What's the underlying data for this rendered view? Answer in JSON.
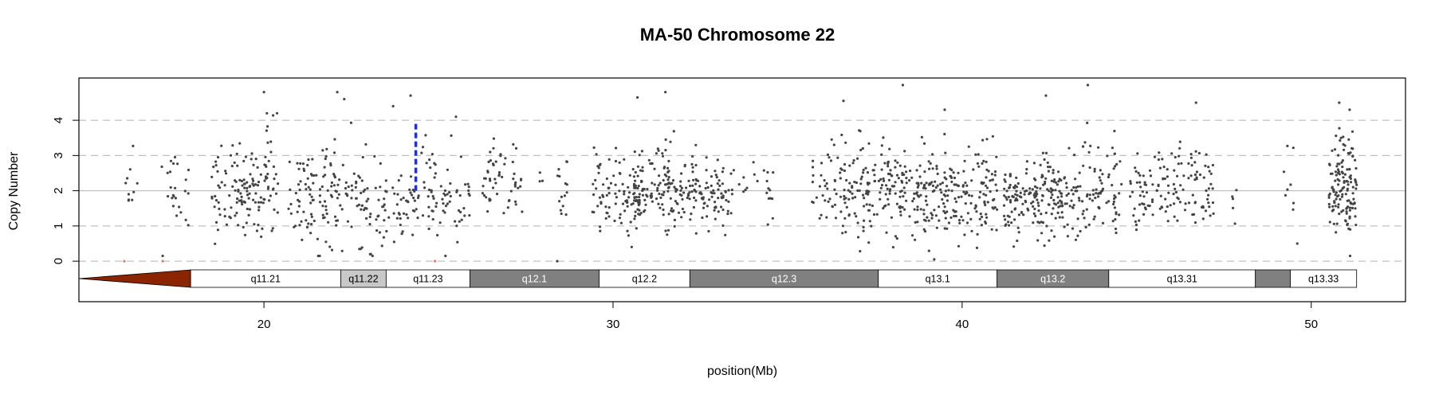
{
  "chart_data": {
    "type": "scatter",
    "title": "MA-50  Chromosome 22",
    "xlabel": "position(Mb)",
    "ylabel": "Copy Number",
    "xlim": [
      14.7,
      52.7
    ],
    "ylim": [
      -1.15,
      5.2
    ],
    "x_ticks": [
      20,
      30,
      40,
      50
    ],
    "y_ticks": [
      0,
      1,
      2,
      3,
      4
    ],
    "grid": {
      "dashed_y": [
        0,
        1,
        3,
        4
      ],
      "solid_y": [
        2
      ]
    },
    "colors": {
      "point": "#444444",
      "low_point": "#e07878",
      "marker": "#1f2fe0",
      "centromere": "#8b2500",
      "band_gpos": "#808080",
      "band_gvar": "#c8c8c8",
      "band_gneg": "#ffffff",
      "grid": "#c0c0c0"
    },
    "marker": {
      "x": 24.35,
      "y_from": 2.0,
      "y_to": 3.95
    },
    "ideogram": {
      "centromere": {
        "x_start": 14.7,
        "x_end": 17.9
      },
      "bands": [
        {
          "name": "q11.21",
          "start": 17.9,
          "end": 22.2,
          "stain": "gneg"
        },
        {
          "name": "q11.22",
          "start": 22.2,
          "end": 23.5,
          "stain": "gvar"
        },
        {
          "name": "q11.23",
          "start": 23.5,
          "end": 25.9,
          "stain": "gneg"
        },
        {
          "name": "q12.1",
          "start": 25.9,
          "end": 29.6,
          "stain": "gpos"
        },
        {
          "name": "q12.2",
          "start": 29.6,
          "end": 32.2,
          "stain": "gneg"
        },
        {
          "name": "q12.3",
          "start": 32.2,
          "end": 37.6,
          "stain": "gpos"
        },
        {
          "name": "q13.1",
          "start": 37.6,
          "end": 41.0,
          "stain": "gneg"
        },
        {
          "name": "q13.2",
          "start": 41.0,
          "end": 44.2,
          "stain": "gpos"
        },
        {
          "name": "q13.31",
          "start": 44.2,
          "end": 48.4,
          "stain": "gneg"
        },
        {
          "name": "",
          "start": 48.4,
          "end": 49.4,
          "stain": "gpos"
        },
        {
          "name": "q13.33",
          "start": 49.4,
          "end": 51.3,
          "stain": "gneg"
        }
      ]
    },
    "clusters": [
      {
        "x_start": 16.0,
        "x_end": 16.4,
        "mean": 2.2,
        "sd": 0.45,
        "n": 10
      },
      {
        "x_start": 17.0,
        "x_end": 17.9,
        "mean": 1.9,
        "sd": 0.6,
        "n": 24
      },
      {
        "x_start": 18.5,
        "x_end": 20.0,
        "mean": 1.95,
        "sd": 0.6,
        "n": 110
      },
      {
        "x_start": 20.0,
        "x_end": 20.4,
        "mean": 2.6,
        "sd": 0.8,
        "n": 35
      },
      {
        "x_start": 20.7,
        "x_end": 22.1,
        "mean": 1.95,
        "sd": 0.65,
        "n": 95
      },
      {
        "x_start": 22.1,
        "x_end": 23.0,
        "mean": 2.0,
        "sd": 0.6,
        "n": 40
      },
      {
        "x_start": 22.7,
        "x_end": 24.4,
        "mean": 1.5,
        "sd": 0.6,
        "n": 75
      },
      {
        "x_start": 24.4,
        "x_end": 25.9,
        "mean": 1.9,
        "sd": 0.6,
        "n": 70
      },
      {
        "x_start": 26.2,
        "x_end": 27.4,
        "mean": 2.1,
        "sd": 0.55,
        "n": 55
      },
      {
        "x_start": 27.9,
        "x_end": 28.0,
        "mean": 2.5,
        "sd": 0.3,
        "n": 3
      },
      {
        "x_start": 28.4,
        "x_end": 28.8,
        "mean": 1.9,
        "sd": 0.6,
        "n": 15
      },
      {
        "x_start": 29.4,
        "x_end": 30.8,
        "mean": 1.85,
        "sd": 0.6,
        "n": 95
      },
      {
        "x_start": 30.6,
        "x_end": 32.4,
        "mean": 2.05,
        "sd": 0.55,
        "n": 160
      },
      {
        "x_start": 32.4,
        "x_end": 33.5,
        "mean": 1.9,
        "sd": 0.5,
        "n": 70
      },
      {
        "x_start": 33.6,
        "x_end": 34.6,
        "mean": 2.1,
        "sd": 0.45,
        "n": 20
      },
      {
        "x_start": 35.7,
        "x_end": 36.5,
        "mean": 1.9,
        "sd": 0.6,
        "n": 35
      },
      {
        "x_start": 36.5,
        "x_end": 38.2,
        "mean": 2.05,
        "sd": 0.65,
        "n": 140
      },
      {
        "x_start": 38.2,
        "x_end": 39.8,
        "mean": 1.95,
        "sd": 0.6,
        "n": 140
      },
      {
        "x_start": 39.8,
        "x_end": 41.0,
        "mean": 1.9,
        "sd": 0.6,
        "n": 95
      },
      {
        "x_start": 41.2,
        "x_end": 42.3,
        "mean": 1.75,
        "sd": 0.55,
        "n": 110
      },
      {
        "x_start": 42.3,
        "x_end": 43.4,
        "mean": 1.85,
        "sd": 0.55,
        "n": 100
      },
      {
        "x_start": 43.4,
        "x_end": 44.6,
        "mean": 2.1,
        "sd": 0.65,
        "n": 75
      },
      {
        "x_start": 44.8,
        "x_end": 45.5,
        "mean": 2.0,
        "sd": 0.55,
        "n": 40
      },
      {
        "x_start": 45.5,
        "x_end": 47.2,
        "mean": 2.05,
        "sd": 0.6,
        "n": 95
      },
      {
        "x_start": 47.6,
        "x_end": 47.9,
        "mean": 1.6,
        "sd": 0.4,
        "n": 5
      },
      {
        "x_start": 49.2,
        "x_end": 49.6,
        "mean": 2.4,
        "sd": 0.6,
        "n": 8
      },
      {
        "x_start": 50.5,
        "x_end": 51.3,
        "mean": 2.2,
        "sd": 0.7,
        "n": 135
      }
    ],
    "outliers": [
      {
        "x": 20.0,
        "y": 4.8
      },
      {
        "x": 22.1,
        "y": 4.8
      },
      {
        "x": 22.3,
        "y": 4.6
      },
      {
        "x": 24.2,
        "y": 4.7
      },
      {
        "x": 25.5,
        "y": 4.1
      },
      {
        "x": 23.7,
        "y": 4.4
      },
      {
        "x": 30.7,
        "y": 4.65
      },
      {
        "x": 31.5,
        "y": 4.8
      },
      {
        "x": 36.6,
        "y": 4.55
      },
      {
        "x": 38.3,
        "y": 5.0
      },
      {
        "x": 42.4,
        "y": 4.7
      },
      {
        "x": 43.6,
        "y": 5.0
      },
      {
        "x": 46.7,
        "y": 4.5
      },
      {
        "x": 39.5,
        "y": 4.3
      },
      {
        "x": 50.8,
        "y": 4.5
      },
      {
        "x": 51.1,
        "y": 4.3
      },
      {
        "x": 17.1,
        "y": 0.15
      },
      {
        "x": 25.2,
        "y": 0.15
      },
      {
        "x": 49.6,
        "y": 0.5
      },
      {
        "x": 39.2,
        "y": 0.05
      },
      {
        "x": 28.4,
        "y": 0.0
      }
    ],
    "low_points": [
      {
        "x": 16.0,
        "y": 0.0
      },
      {
        "x": 17.1,
        "y": 0.0
      },
      {
        "x": 24.9,
        "y": 0.0
      }
    ]
  }
}
